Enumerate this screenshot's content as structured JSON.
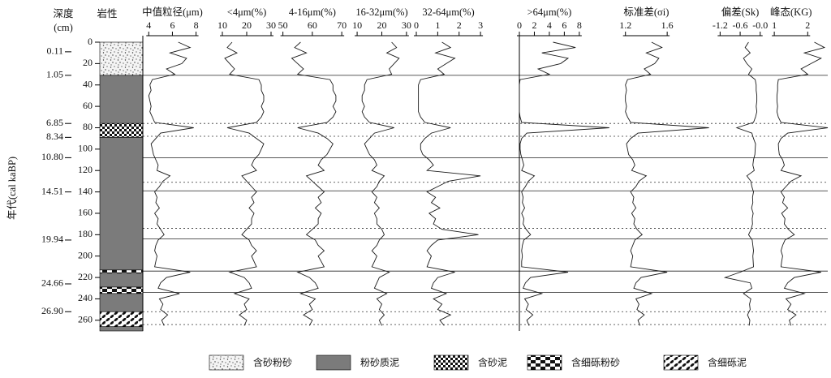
{
  "chart_data": {
    "type": "depth_profile",
    "depth_title": "深度",
    "depth_unit": "(cm)",
    "lithology_title": "岩性",
    "age_title": "年代(cal kaBP)",
    "ylim": [
      0,
      270
    ],
    "yticks": [
      0,
      20,
      40,
      60,
      80,
      100,
      120,
      140,
      160,
      180,
      200,
      220,
      240,
      260
    ],
    "age_ticks": [
      {
        "depth": 9,
        "label": "0.11"
      },
      {
        "depth": 31,
        "label": "1.05"
      },
      {
        "depth": 76,
        "label": "6.85"
      },
      {
        "depth": 89,
        "label": "8.34"
      },
      {
        "depth": 108,
        "label": "10.80"
      },
      {
        "depth": 140,
        "label": "14.51"
      },
      {
        "depth": 185,
        "label": "19.94"
      },
      {
        "depth": 226,
        "label": "24.66"
      },
      {
        "depth": 252,
        "label": "26.90"
      }
    ],
    "solid_boundaries": [
      31,
      108,
      139,
      184,
      214,
      234
    ],
    "dotted_boundaries": [
      76,
      88,
      131,
      174,
      252,
      264
    ],
    "lithology": [
      {
        "from": 0,
        "to": 31,
        "legend": 0
      },
      {
        "from": 31,
        "to": 76,
        "legend": 1
      },
      {
        "from": 76,
        "to": 89,
        "legend": 2
      },
      {
        "from": 89,
        "to": 213,
        "legend": 1
      },
      {
        "from": 213,
        "to": 216,
        "legend": 3
      },
      {
        "from": 216,
        "to": 229,
        "legend": 1
      },
      {
        "from": 229,
        "to": 235,
        "legend": 3
      },
      {
        "from": 235,
        "to": 252,
        "legend": 1
      },
      {
        "from": 252,
        "to": 266,
        "legend": 4
      },
      {
        "from": 266,
        "to": 270,
        "legend": 1
      }
    ],
    "legend": [
      "含砂粉砂",
      "粉砂质泥",
      "含砂泥",
      "含细砾粉砂",
      "含细砾泥"
    ],
    "line_color": "#1a1a1a",
    "depth": [
      0,
      5,
      10,
      15,
      20,
      25,
      30,
      35,
      40,
      45,
      50,
      55,
      60,
      65,
      70,
      75,
      80,
      85,
      90,
      95,
      100,
      105,
      110,
      115,
      120,
      125,
      130,
      135,
      140,
      145,
      150,
      155,
      160,
      165,
      170,
      175,
      180,
      185,
      190,
      195,
      200,
      205,
      210,
      215,
      220,
      225,
      230,
      235,
      240,
      245,
      250,
      255,
      260,
      265
    ],
    "panels": [
      {
        "title": "中值粒径(μm)",
        "xlim": [
          3.5,
          9.4
        ],
        "xticks": [
          4,
          6,
          8
        ],
        "values": [
          6.5,
          7.5,
          5.8,
          7.2,
          6.8,
          5.5,
          6.2,
          4.3,
          4.1,
          4.2,
          4.0,
          4.1,
          4.2,
          4.1,
          4.3,
          4.5,
          7.8,
          5.0,
          4.6,
          4.2,
          4.3,
          4.4,
          4.6,
          4.8,
          4.7,
          5.8,
          5.2,
          4.9,
          4.5,
          4.7,
          4.6,
          4.9,
          4.5,
          4.8,
          4.7,
          5.0,
          5.3,
          4.8,
          4.6,
          4.5,
          4.7,
          4.6,
          4.5,
          7.5,
          5.5,
          5.0,
          4.8,
          6.6,
          4.9,
          5.2,
          5.0,
          5.6,
          5.1,
          5.3
        ]
      },
      {
        "title": "<4μm(%)",
        "xlim": [
          8,
          33
        ],
        "xticks": [
          10,
          20,
          30
        ],
        "values": [
          14,
          12,
          16,
          11,
          13,
          15,
          13,
          25,
          26,
          26,
          27,
          27,
          26,
          27,
          26,
          24,
          12,
          21,
          24,
          27,
          26,
          25,
          23,
          22,
          24,
          18,
          20,
          22,
          24,
          22,
          23,
          21,
          23,
          22,
          22,
          20,
          18,
          21,
          22,
          24,
          22,
          23,
          24,
          13,
          19,
          21,
          22,
          15,
          21,
          19,
          20,
          17,
          20,
          19
        ]
      },
      {
        "title": "4-16μm(%)",
        "xlim": [
          49,
          73
        ],
        "xticks": [
          50,
          60,
          70
        ],
        "values": [
          56,
          54,
          58,
          53,
          55,
          57,
          55,
          66,
          67,
          67,
          68,
          68,
          67,
          68,
          67,
          65,
          55,
          62,
          65,
          67,
          66,
          65,
          63,
          62,
          64,
          58,
          60,
          62,
          64,
          62,
          63,
          61,
          63,
          62,
          62,
          60,
          58,
          61,
          62,
          64,
          62,
          63,
          64,
          55,
          59,
          61,
          62,
          56,
          61,
          59,
          60,
          57,
          60,
          59
        ]
      },
      {
        "title": "16-32μm(%)",
        "xlim": [
          8,
          33
        ],
        "xticks": [
          10,
          20,
          30
        ],
        "values": [
          24,
          26,
          22,
          27,
          25,
          23,
          24,
          14,
          13,
          13,
          12,
          12,
          13,
          12,
          13,
          15,
          25,
          17,
          15,
          13,
          14,
          15,
          17,
          18,
          16,
          21,
          19,
          18,
          16,
          18,
          17,
          19,
          17,
          18,
          18,
          20,
          21,
          19,
          18,
          16,
          18,
          17,
          16,
          23,
          19,
          18,
          17,
          22,
          18,
          20,
          19,
          21,
          19,
          20
        ]
      },
      {
        "title": "32-64μm(%)",
        "xlim": [
          0,
          3.3
        ],
        "xticks": [
          0,
          1,
          2,
          3
        ],
        "values": [
          1.2,
          1.6,
          0.9,
          1.8,
          1.4,
          1.0,
          1.3,
          0.2,
          0.1,
          0.1,
          0.1,
          0.1,
          0.1,
          0.1,
          0.2,
          0.4,
          1.6,
          0.7,
          0.4,
          0.2,
          0.2,
          0.3,
          0.6,
          0.8,
          0.5,
          3.0,
          1.5,
          1.0,
          0.5,
          0.9,
          0.7,
          1.1,
          0.6,
          0.9,
          0.8,
          1.2,
          2.9,
          1.0,
          0.7,
          0.5,
          0.7,
          0.6,
          0.5,
          1.8,
          1.0,
          0.8,
          0.7,
          1.4,
          0.8,
          1.2,
          1.0,
          1.6,
          1.1,
          1.3
        ]
      },
      {
        "title": ">64μm(%)",
        "xlim": [
          0,
          13
        ],
        "xticks": [
          0,
          2,
          4,
          6,
          8
        ],
        "values": [
          4.5,
          7.5,
          3.0,
          6.5,
          5.5,
          2.5,
          4.0,
          0.1,
          0,
          0,
          0,
          0,
          0,
          0,
          0.1,
          0.3,
          12,
          1.0,
          0.3,
          0.1,
          0.1,
          0.2,
          0.4,
          0.6,
          0.3,
          2.0,
          1.2,
          0.8,
          0.3,
          0.5,
          0.4,
          0.7,
          0.3,
          0.6,
          0.5,
          0.9,
          1.5,
          0.6,
          0.4,
          0.3,
          0.4,
          0.3,
          0.3,
          6.5,
          1.5,
          0.8,
          0.5,
          3.0,
          0.7,
          1.2,
          0.9,
          1.8,
          1.0,
          1.3
        ]
      },
      {
        "title": "标准差(σi)",
        "xlim": [
          1.0,
          2.05
        ],
        "xticks": [
          1.2,
          1.6
        ],
        "values": [
          1.45,
          1.55,
          1.4,
          1.52,
          1.48,
          1.38,
          1.44,
          1.22,
          1.2,
          1.21,
          1.2,
          1.2,
          1.21,
          1.2,
          1.22,
          1.25,
          2.0,
          1.32,
          1.25,
          1.21,
          1.22,
          1.23,
          1.27,
          1.29,
          1.26,
          1.4,
          1.33,
          1.3,
          1.25,
          1.28,
          1.27,
          1.3,
          1.26,
          1.29,
          1.28,
          1.31,
          1.36,
          1.29,
          1.27,
          1.25,
          1.27,
          1.26,
          1.25,
          1.6,
          1.35,
          1.3,
          1.28,
          1.45,
          1.3,
          1.33,
          1.31,
          1.38,
          1.32,
          1.34
        ]
      },
      {
        "title": "偏差(Sk)",
        "xlim": [
          -1.5,
          0.2
        ],
        "xticks": [
          -1.2,
          -0.6,
          {
            "value": 0,
            "label": "-0.0"
          }
        ],
        "values": [
          -0.35,
          -0.45,
          -0.3,
          -0.5,
          -0.4,
          -0.25,
          -0.35,
          -0.15,
          -0.12,
          -0.12,
          -0.1,
          -0.1,
          -0.12,
          -0.1,
          -0.14,
          -0.2,
          -0.7,
          -0.25,
          -0.2,
          -0.14,
          -0.15,
          -0.16,
          -0.2,
          -0.22,
          -0.18,
          -0.4,
          -0.28,
          -0.25,
          -0.2,
          -0.23,
          -0.22,
          -0.26,
          -0.21,
          -0.24,
          -0.23,
          -0.27,
          -0.35,
          -0.24,
          -0.22,
          -0.2,
          -0.22,
          -0.21,
          -0.2,
          -0.6,
          -1.05,
          -0.3,
          -0.25,
          -0.5,
          -0.28,
          -0.32,
          -0.3,
          -0.38,
          -0.31,
          -0.33
        ]
      },
      {
        "title": "峰态(KG)",
        "xlim": [
          0.9,
          2.6
        ],
        "xticks": [
          1,
          2
        ],
        "values": [
          2.2,
          2.5,
          1.9,
          2.4,
          2.1,
          1.8,
          2.0,
          1.12,
          1.1,
          1.1,
          1.08,
          1.08,
          1.1,
          1.08,
          1.12,
          1.2,
          2.6,
          1.4,
          1.2,
          1.12,
          1.13,
          1.15,
          1.25,
          1.3,
          1.2,
          1.8,
          1.5,
          1.35,
          1.2,
          1.3,
          1.25,
          1.4,
          1.22,
          1.32,
          1.3,
          1.42,
          1.6,
          1.32,
          1.25,
          1.2,
          1.25,
          1.22,
          1.2,
          2.4,
          1.6,
          1.4,
          1.3,
          1.9,
          1.35,
          1.5,
          1.4,
          1.65,
          1.45,
          1.5
        ]
      }
    ]
  }
}
